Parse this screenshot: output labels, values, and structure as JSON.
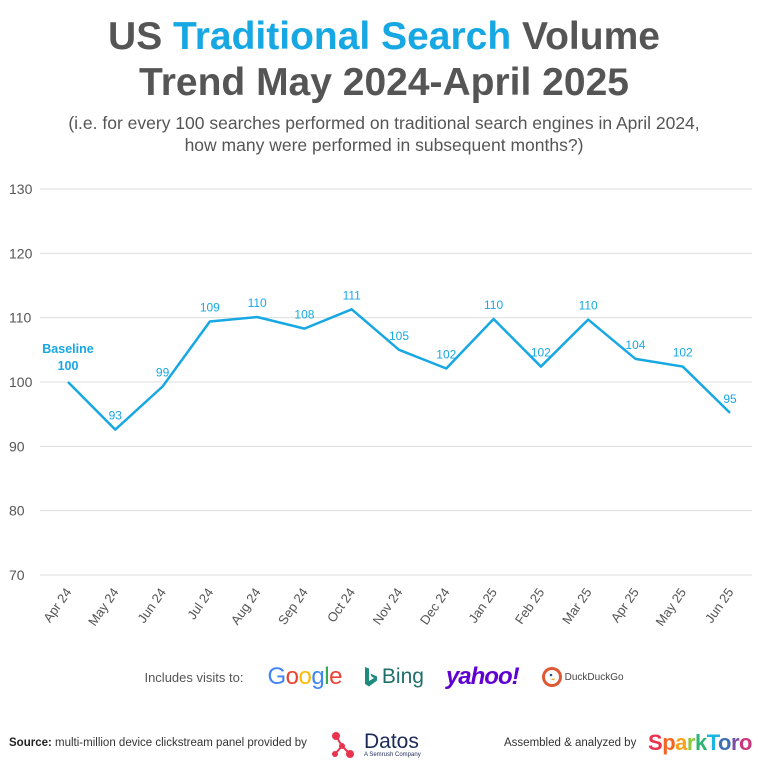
{
  "title": {
    "line1_prefix": "US ",
    "line1_accent": "Traditional Search",
    "line1_suffix": " Volume",
    "line2": "Trend May 2024-April 2025"
  },
  "subtitle": {
    "line1": "(i.e. for every 100 searches performed on traditional search engines in April 2024,",
    "line2": "how many were performed in subsequent months?)"
  },
  "colors": {
    "line": "#17a8e3",
    "title_text": "#555555",
    "accent": "#17a8e3",
    "grid": "#dddddd"
  },
  "chart_data": {
    "type": "line",
    "categories": [
      "Apr 24",
      "May 24",
      "Jun 24",
      "Jul 24",
      "Aug 24",
      "Sep 24",
      "Oct 24",
      "Nov 24",
      "Dec 24",
      "Jan 25",
      "Feb 25",
      "Mar 25",
      "Apr 25",
      "May 25",
      "Jun 25"
    ],
    "values": [
      100,
      92.6,
      99.3,
      109.4,
      110.1,
      108.3,
      111.3,
      105,
      102.1,
      109.8,
      102.4,
      109.7,
      103.6,
      102.4,
      95.2
    ],
    "labels": [
      "100",
      "93",
      "99",
      "109",
      "110",
      "108",
      "111",
      "105",
      "102",
      "110",
      "102",
      "110",
      "104",
      "102",
      "95"
    ],
    "ylim": [
      70,
      130
    ],
    "yticks": [
      70,
      80,
      90,
      100,
      110,
      120,
      130
    ],
    "grid": true,
    "annotation": "Baseline"
  },
  "sources": {
    "label": "Includes visits to:",
    "google": "Google",
    "bing": "Bing",
    "yahoo": "yahoo!",
    "duckduckgo": "DuckDuckGo"
  },
  "footer": {
    "source_label": "Source:",
    "source_text": " multi-million device clickstream panel provided by",
    "datos_name": "Datos",
    "datos_tag": "A Semrush Company",
    "assembled": "Assembled & analyzed by",
    "sparktoro": "SparkToro"
  }
}
